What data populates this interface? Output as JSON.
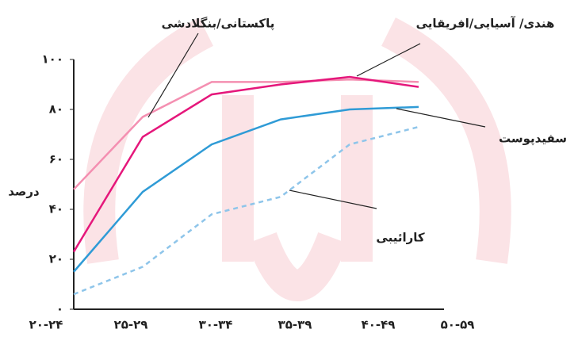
{
  "chart_data": {
    "type": "line",
    "y_label": "درصد",
    "categories": [
      "۲۰-۲۴",
      "۲۵-۲۹",
      "۳۰-۳۴",
      "۳۵-۳۹",
      "۴۰-۴۹",
      "۵۰-۵۹"
    ],
    "series": [
      {
        "name": "پاکستانی/بنگلادشی",
        "color": "#f48fb1",
        "values": [
          48,
          77,
          91,
          91,
          92,
          91
        ]
      },
      {
        "name": "هندی/ آسیایی/افریقایی",
        "color": "#e5177b",
        "values": [
          23,
          69,
          86,
          90,
          93,
          89
        ]
      },
      {
        "name": "سفیدپوست",
        "color": "#2f9bd6",
        "values": [
          15,
          47,
          66,
          76,
          80,
          81
        ]
      },
      {
        "name": "کارائیبی",
        "color": "#8ec5ea",
        "dashed": true,
        "values": [
          6,
          17,
          38,
          45,
          66,
          73
        ]
      }
    ],
    "ylim": [
      0,
      100
    ],
    "yticks": [
      {
        "value": 0,
        "label": "۰"
      },
      {
        "value": 20,
        "label": "۲۰"
      },
      {
        "value": 40,
        "label": "۴۰"
      },
      {
        "value": 60,
        "label": "۶۰"
      },
      {
        "value": 80,
        "label": "۸۰"
      },
      {
        "value": 100,
        "label": "۱۰۰"
      }
    ]
  }
}
